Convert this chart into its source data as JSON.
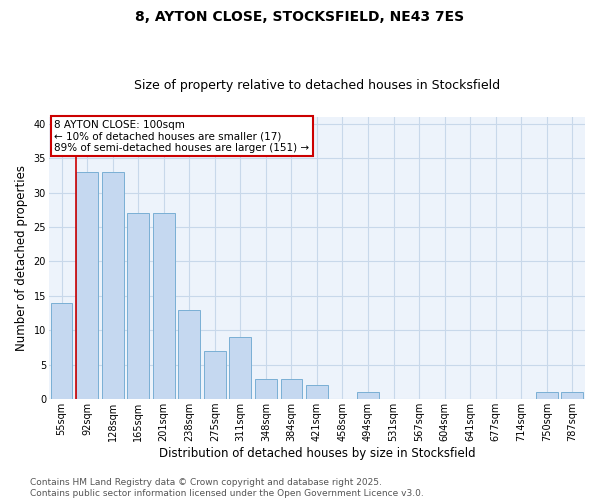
{
  "title_line1": "8, AYTON CLOSE, STOCKSFIELD, NE43 7ES",
  "title_line2": "Size of property relative to detached houses in Stocksfield",
  "xlabel": "Distribution of detached houses by size in Stocksfield",
  "ylabel": "Number of detached properties",
  "categories": [
    "55sqm",
    "92sqm",
    "128sqm",
    "165sqm",
    "201sqm",
    "238sqm",
    "275sqm",
    "311sqm",
    "348sqm",
    "384sqm",
    "421sqm",
    "458sqm",
    "494sqm",
    "531sqm",
    "567sqm",
    "604sqm",
    "641sqm",
    "677sqm",
    "714sqm",
    "750sqm",
    "787sqm"
  ],
  "values": [
    14,
    33,
    33,
    27,
    27,
    13,
    7,
    9,
    3,
    3,
    2,
    0,
    1,
    0,
    0,
    0,
    0,
    0,
    0,
    1,
    1
  ],
  "bar_color": "#c5d8f0",
  "bar_edge_color": "#7aafd4",
  "grid_color": "#c8d8ea",
  "background_color": "#edf3fb",
  "annotation_box_text": "8 AYTON CLOSE: 100sqm\n← 10% of detached houses are smaller (17)\n89% of semi-detached houses are larger (151) →",
  "annotation_box_color": "#cc0000",
  "vline_x_index": 1,
  "vline_color": "#cc0000",
  "ylim": [
    0,
    41
  ],
  "yticks": [
    0,
    5,
    10,
    15,
    20,
    25,
    30,
    35,
    40
  ],
  "footer_text": "Contains HM Land Registry data © Crown copyright and database right 2025.\nContains public sector information licensed under the Open Government Licence v3.0.",
  "title_fontsize": 10,
  "subtitle_fontsize": 9,
  "axis_label_fontsize": 8.5,
  "tick_fontsize": 7,
  "annotation_fontsize": 7.5,
  "footer_fontsize": 6.5
}
